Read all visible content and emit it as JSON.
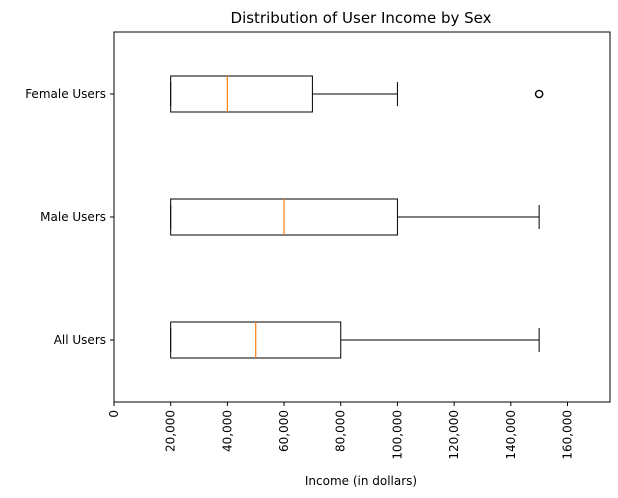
{
  "chart_data": {
    "type": "boxplot",
    "orientation": "horizontal",
    "title": "Distribution of User Income by Sex",
    "xlabel": "Income (in dollars)",
    "ylabel": "",
    "xlim": [
      0,
      175000
    ],
    "xticks": [
      0,
      20000,
      40000,
      60000,
      80000,
      100000,
      120000,
      140000,
      160000
    ],
    "xtick_labels": [
      "0",
      "20,000",
      "40,000",
      "60,000",
      "80,000",
      "100,000",
      "120,000",
      "140,000",
      "160,000"
    ],
    "grid": false,
    "colors": {
      "box": "#000000",
      "median": "#ff7f0e"
    },
    "categories": [
      "All Users",
      "Male Users",
      "Female Users"
    ],
    "boxes": [
      {
        "label": "All Users",
        "whisker_low": 20000,
        "q1": 20000,
        "median": 50000,
        "q3": 80000,
        "whisker_high": 150000,
        "outliers": []
      },
      {
        "label": "Male Users",
        "whisker_low": 20000,
        "q1": 20000,
        "median": 60000,
        "q3": 100000,
        "whisker_high": 150000,
        "outliers": []
      },
      {
        "label": "Female Users",
        "whisker_low": 20000,
        "q1": 20000,
        "median": 40000,
        "q3": 70000,
        "whisker_high": 100000,
        "outliers": [
          150000
        ]
      }
    ]
  }
}
